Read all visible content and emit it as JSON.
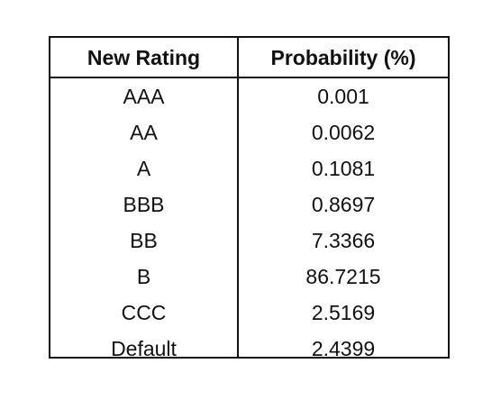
{
  "table": {
    "headers": [
      "New Rating",
      "Probability (%)"
    ],
    "rows": [
      {
        "rating": "AAA",
        "probability": "0.001"
      },
      {
        "rating": "AA",
        "probability": "0.0062"
      },
      {
        "rating": "A",
        "probability": "0.1081"
      },
      {
        "rating": "BBB",
        "probability": "0.8697"
      },
      {
        "rating": "BB",
        "probability": "7.3366"
      },
      {
        "rating": "B",
        "probability": "86.7215"
      },
      {
        "rating": "CCC",
        "probability": "2.5169"
      },
      {
        "rating": "Default",
        "probability": "2.4399"
      }
    ]
  }
}
